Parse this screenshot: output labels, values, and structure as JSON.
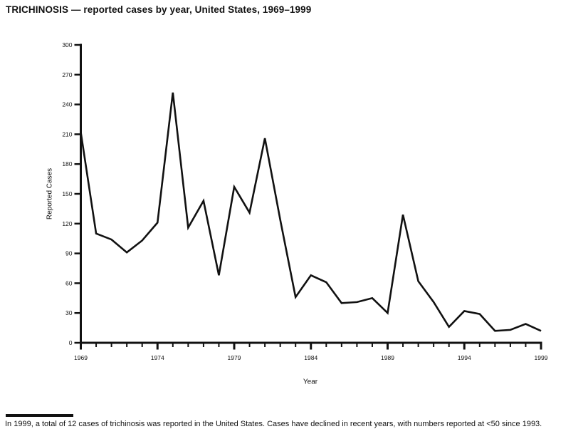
{
  "page": {
    "title": "TRICHINOSIS — reported cases by year, United States, 1969–1999",
    "footnote": "In 1999, a total of 12 cases of trichinosis was reported in the United States. Cases have declined in recent years, with numbers reported at <50 since 1993."
  },
  "chart_data": {
    "type": "line",
    "title": "TRICHINOSIS — reported cases by year, United States, 1969–1999",
    "xlabel": "Year",
    "ylabel": "Reported Cases",
    "x": [
      1969,
      1970,
      1971,
      1972,
      1973,
      1974,
      1975,
      1976,
      1977,
      1978,
      1979,
      1980,
      1981,
      1982,
      1983,
      1984,
      1985,
      1986,
      1987,
      1988,
      1989,
      1990,
      1991,
      1992,
      1993,
      1994,
      1995,
      1996,
      1997,
      1998,
      1999
    ],
    "values": [
      212,
      110,
      104,
      91,
      103,
      121,
      252,
      116,
      143,
      68,
      157,
      131,
      206,
      124,
      46,
      68,
      61,
      40,
      41,
      45,
      30,
      129,
      62,
      41,
      16,
      32,
      29,
      12,
      13,
      19,
      12
    ],
    "xlim": [
      1969,
      1999
    ],
    "ylim": [
      0,
      300
    ],
    "y_tick_step": 30,
    "x_minor_tick_step": 1,
    "x_major_tick_step": 5,
    "x_major_ticks": [
      1969,
      1974,
      1979,
      1984,
      1989,
      1994,
      1999
    ],
    "grid": false,
    "legend": "none",
    "line_color": "#111111",
    "background_color": "#ffffff"
  }
}
